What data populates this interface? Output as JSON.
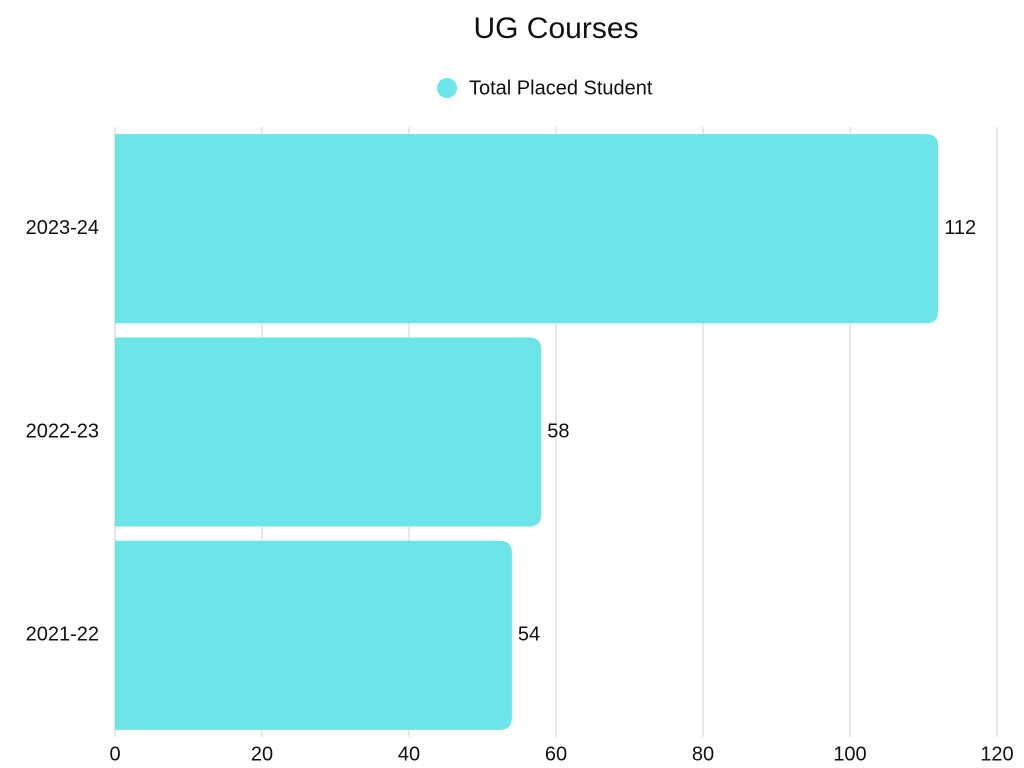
{
  "chart_data": {
    "type": "bar",
    "orientation": "horizontal",
    "title": "UG Courses",
    "categories": [
      "2023-24",
      "2022-23",
      "2021-22"
    ],
    "series": [
      {
        "name": "Total Placed Student",
        "color": "#6ce5e8",
        "values": [
          112,
          58,
          54
        ]
      }
    ],
    "xlim": [
      0,
      120
    ],
    "xticks": [
      0,
      20,
      40,
      60,
      80,
      100,
      120
    ],
    "grid": true,
    "legend": "top"
  }
}
